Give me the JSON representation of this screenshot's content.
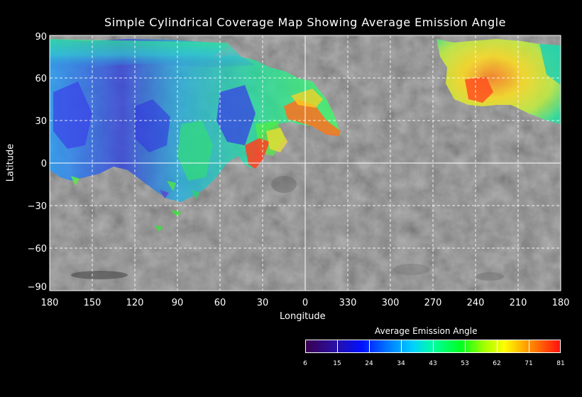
{
  "title": "Simple Cylindrical Coverage Map Showing Average Emission Angle",
  "axes": {
    "xlabel": "Longitude",
    "ylabel": "Latitude",
    "x_ticks": [
      "180",
      "150",
      "120",
      "90",
      "60",
      "30",
      "0",
      "330",
      "300",
      "270",
      "240",
      "210",
      "180"
    ],
    "y_ticks": [
      "90",
      "60",
      "30",
      "0",
      "−30",
      "−60",
      "−90"
    ]
  },
  "colorbar": {
    "title": "Average Emission Angle",
    "labels": [
      "6",
      "15",
      "24",
      "34",
      "43",
      "53",
      "62",
      "71",
      "81"
    ],
    "colors": [
      "#3a0050",
      "#2a10a0",
      "#0010ff",
      "#0080ff",
      "#00d0ff",
      "#00ffa0",
      "#00ff20",
      "#a0ff00",
      "#ffff00",
      "#ff9000",
      "#ff1010"
    ]
  },
  "grid": "dashed white"
}
